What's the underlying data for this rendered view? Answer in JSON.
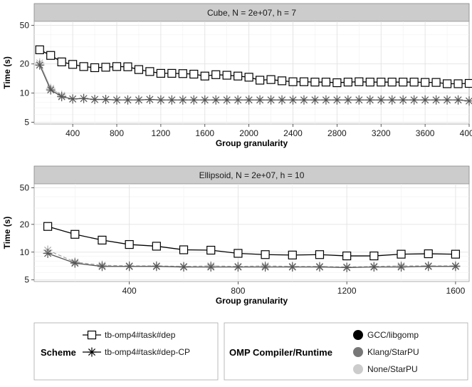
{
  "chart_data": [
    {
      "type": "line",
      "title": "Cube, N = 2e+07, h = 7",
      "xlabel": "Group granularity",
      "ylabel": "Time (s)",
      "y_scale": "log",
      "xlim": [
        50,
        4000
      ],
      "ylim": [
        4.8,
        55
      ],
      "x_ticks": [
        400,
        800,
        1200,
        1600,
        2000,
        2400,
        2800,
        3200,
        3600,
        4000
      ],
      "y_ticks": [
        5,
        10,
        20,
        50
      ],
      "grid": true,
      "series": [
        {
          "name": "tb-omp4#task#dep",
          "marker": "square",
          "color": "#000000",
          "x": [
            100,
            200,
            300,
            400,
            500,
            600,
            700,
            800,
            900,
            1000,
            1100,
            1200,
            1300,
            1400,
            1500,
            1600,
            1700,
            1800,
            1900,
            2000,
            2100,
            2200,
            2300,
            2400,
            2500,
            2600,
            2700,
            2800,
            2900,
            3000,
            3100,
            3200,
            3300,
            3400,
            3500,
            3600,
            3700,
            3800,
            3900,
            4000
          ],
          "values": [
            28,
            24.5,
            21,
            19.8,
            18.8,
            18.3,
            18.5,
            18.8,
            18.7,
            17.5,
            16.7,
            16,
            16,
            15.9,
            15.7,
            15,
            15.5,
            15.3,
            15,
            14.6,
            13.6,
            13.8,
            13.4,
            13.1,
            13.1,
            13,
            13,
            12.8,
            13,
            13.1,
            13,
            13,
            13,
            13,
            13,
            12.9,
            12.9,
            12.5,
            12.5,
            12.6
          ]
        },
        {
          "name": "tb-omp4#task#dep-CP",
          "marker": "asterisk",
          "color": "#555555",
          "x": [
            100,
            200,
            300,
            400,
            500,
            600,
            700,
            800,
            900,
            1000,
            1100,
            1200,
            1300,
            1400,
            1500,
            1600,
            1700,
            1800,
            1900,
            2000,
            2100,
            2200,
            2300,
            2400,
            2500,
            2600,
            2700,
            2800,
            2900,
            3000,
            3100,
            3200,
            3300,
            3400,
            3500,
            3600,
            3700,
            3800,
            3900,
            4000
          ],
          "values": [
            19.5,
            10.8,
            9.2,
            8.7,
            8.8,
            8.6,
            8.6,
            8.5,
            8.5,
            8.5,
            8.6,
            8.5,
            8.5,
            8.5,
            8.5,
            8.5,
            8.5,
            8.5,
            8.5,
            8.5,
            8.5,
            8.5,
            8.5,
            8.5,
            8.5,
            8.5,
            8.5,
            8.5,
            8.5,
            8.5,
            8.5,
            8.5,
            8.5,
            8.5,
            8.5,
            8.5,
            8.5,
            8.5,
            8.5,
            8.3
          ]
        },
        {
          "name": "tb-omp4#task#dep-CP (None/StarPU)",
          "marker": "asterisk",
          "color": "#bbbbbb",
          "x": [
            100,
            200,
            300
          ],
          "values": [
            20.5,
            11.2,
            9.5
          ]
        }
      ]
    },
    {
      "type": "line",
      "title": "Ellipsoid, N = 2e+07, h = 10",
      "xlabel": "Group granularity",
      "ylabel": "Time (s)",
      "y_scale": "log",
      "xlim": [
        50,
        1650
      ],
      "ylim": [
        4.8,
        55
      ],
      "x_ticks": [
        400,
        800,
        1200,
        1600
      ],
      "y_ticks": [
        5,
        10,
        20,
        50
      ],
      "grid": true,
      "series": [
        {
          "name": "tb-omp4#task#dep",
          "marker": "square",
          "color": "#000000",
          "x": [
            100,
            200,
            300,
            400,
            500,
            600,
            700,
            800,
            900,
            1000,
            1100,
            1200,
            1300,
            1400,
            1500,
            1600
          ],
          "values": [
            19,
            15.6,
            13.5,
            12.1,
            11.6,
            10.6,
            10.5,
            9.7,
            9.4,
            9.3,
            9.4,
            9.1,
            9.1,
            9.5,
            9.6,
            9.5
          ]
        },
        {
          "name": "tb-omp4#task#dep-CP",
          "marker": "asterisk",
          "color": "#555555",
          "x": [
            100,
            200,
            300,
            400,
            500,
            600,
            700,
            800,
            900,
            1000,
            1100,
            1200,
            1300,
            1400,
            1500,
            1600
          ],
          "values": [
            9.7,
            7.6,
            7.0,
            7.0,
            7.0,
            6.9,
            6.9,
            6.9,
            6.9,
            6.9,
            6.9,
            6.8,
            6.9,
            6.9,
            7.0,
            7.0
          ]
        },
        {
          "name": "tb-omp4#task#dep-CP (None/StarPU)",
          "marker": "asterisk",
          "color": "#aaaaaa",
          "dashed": true,
          "x": [
            100,
            200,
            300,
            400,
            500,
            600,
            700,
            800,
            900,
            1000,
            1100,
            1200,
            1300,
            1400,
            1500,
            1600
          ],
          "values": [
            10.5,
            7.8,
            7.2,
            7.1,
            7.1,
            7.0,
            7.1,
            7.0,
            7.1,
            7.0,
            7.0,
            6.9,
            7.0,
            7.1,
            7.1,
            7.1
          ]
        }
      ]
    }
  ],
  "legend": {
    "scheme_title": "Scheme",
    "scheme_items": [
      {
        "label": "tb-omp4#task#dep",
        "marker": "square"
      },
      {
        "label": "tb-omp4#task#dep-CP",
        "marker": "asterisk"
      }
    ],
    "compiler_title": "OMP Compiler/Runtime",
    "compiler_items": [
      {
        "label": "GCC/libgomp",
        "color": "#000000"
      },
      {
        "label": "Klang/StarPU",
        "color": "#777777"
      },
      {
        "label": "None/StarPU",
        "color": "#cccccc"
      }
    ]
  }
}
